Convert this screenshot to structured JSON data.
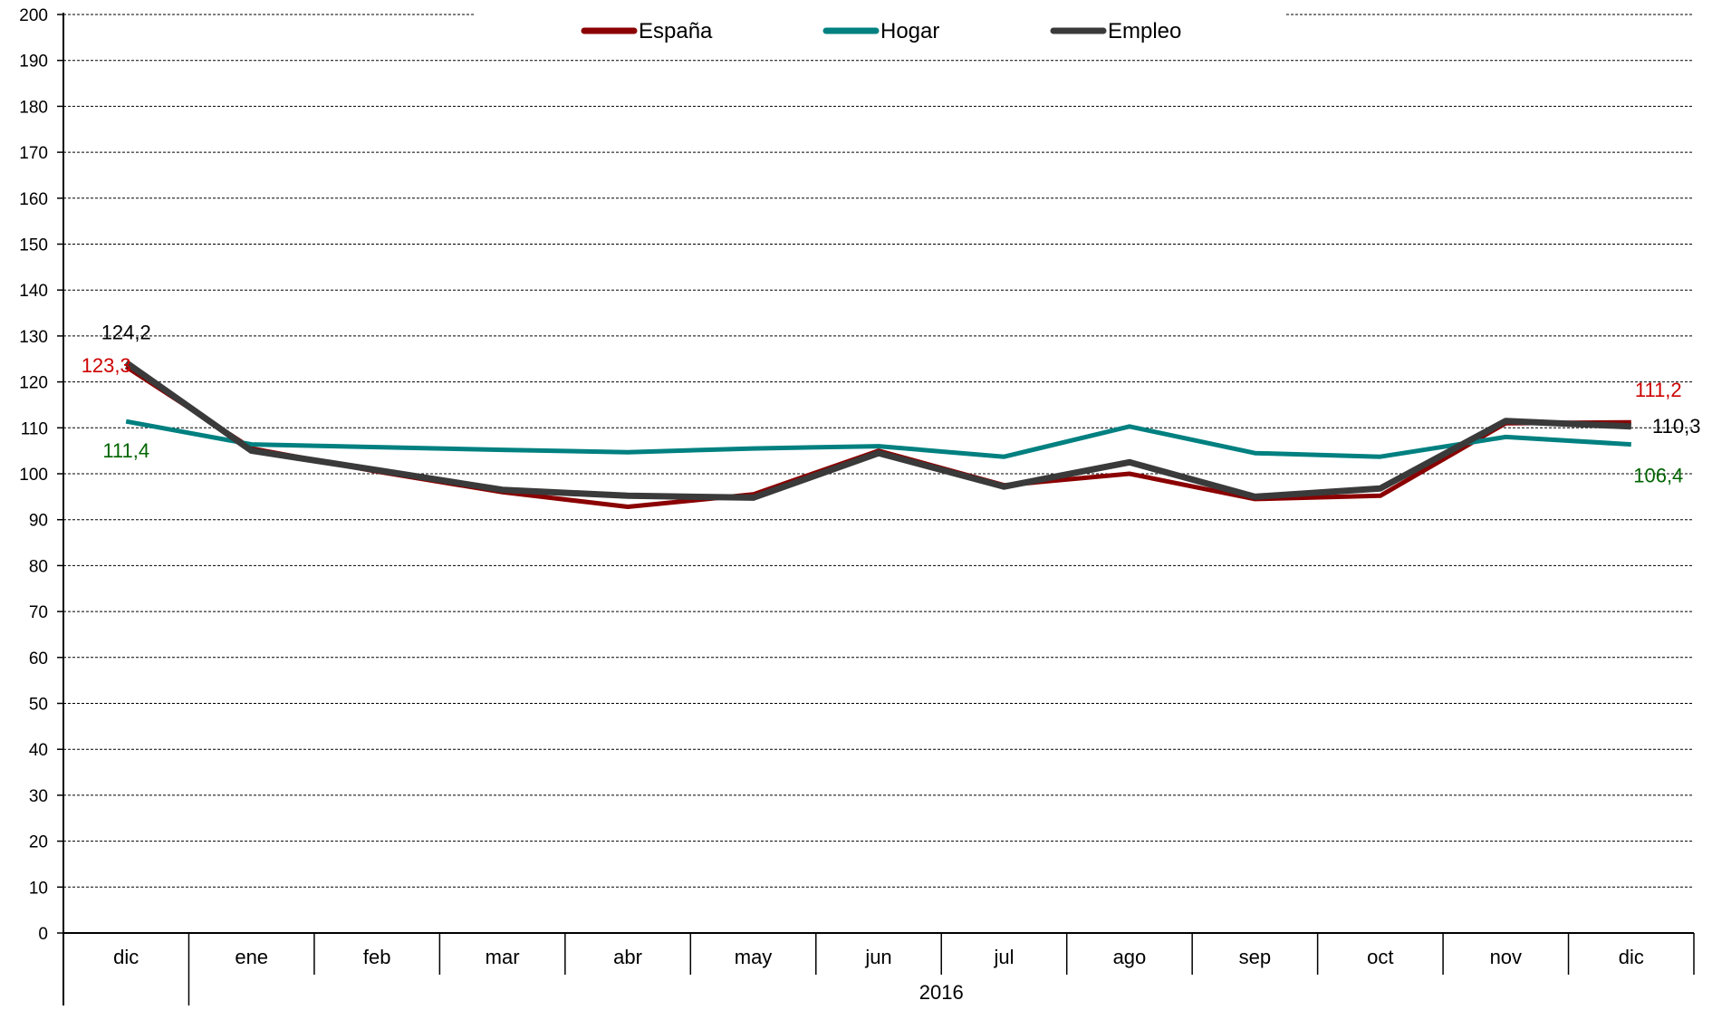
{
  "chart_data": {
    "type": "line",
    "categories": [
      "dic",
      "ene",
      "feb",
      "mar",
      "abr",
      "may",
      "jun",
      "jul",
      "ago",
      "sep",
      "oct",
      "nov",
      "dic"
    ],
    "group_label": "2016",
    "ylim": [
      0,
      200
    ],
    "yticks": [
      0,
      10,
      20,
      30,
      40,
      50,
      60,
      70,
      80,
      90,
      100,
      110,
      120,
      130,
      140,
      150,
      160,
      170,
      180,
      190,
      200
    ],
    "grid": "horizontal-dashed",
    "legend_position": "top-center",
    "series": [
      {
        "name": "España",
        "color": "#8b0000",
        "values": [
          123.3,
          105.5,
          100.5,
          96.0,
          92.8,
          95.5,
          105.0,
          97.5,
          100.0,
          94.5,
          95.2,
          111.0,
          111.2
        ]
      },
      {
        "name": "Hogar",
        "color": "#008080",
        "values": [
          111.4,
          106.4,
          105.8,
          105.2,
          104.7,
          105.5,
          106.0,
          103.7,
          110.3,
          104.5,
          103.7,
          108.0,
          106.4
        ]
      },
      {
        "name": "Empleo",
        "color": "#3a3a3a",
        "values": [
          124.2,
          105.0,
          100.8,
          96.5,
          95.2,
          94.8,
          104.5,
          97.2,
          102.5,
          95.0,
          96.8,
          111.5,
          110.3
        ]
      }
    ],
    "data_labels": [
      {
        "text": "124,2",
        "series": "Empleo",
        "index": 0,
        "color": "#000000"
      },
      {
        "text": "123,3",
        "series": "España",
        "index": 0,
        "color": "#cc0000"
      },
      {
        "text": "111,4",
        "series": "Hogar",
        "index": 0,
        "color": "#006400"
      },
      {
        "text": "111,2",
        "series": "España",
        "index": 12,
        "color": "#cc0000"
      },
      {
        "text": "110,3",
        "series": "Empleo",
        "index": 12,
        "color": "#000000"
      },
      {
        "text": "106,4",
        "series": "Hogar",
        "index": 12,
        "color": "#006400"
      }
    ]
  }
}
